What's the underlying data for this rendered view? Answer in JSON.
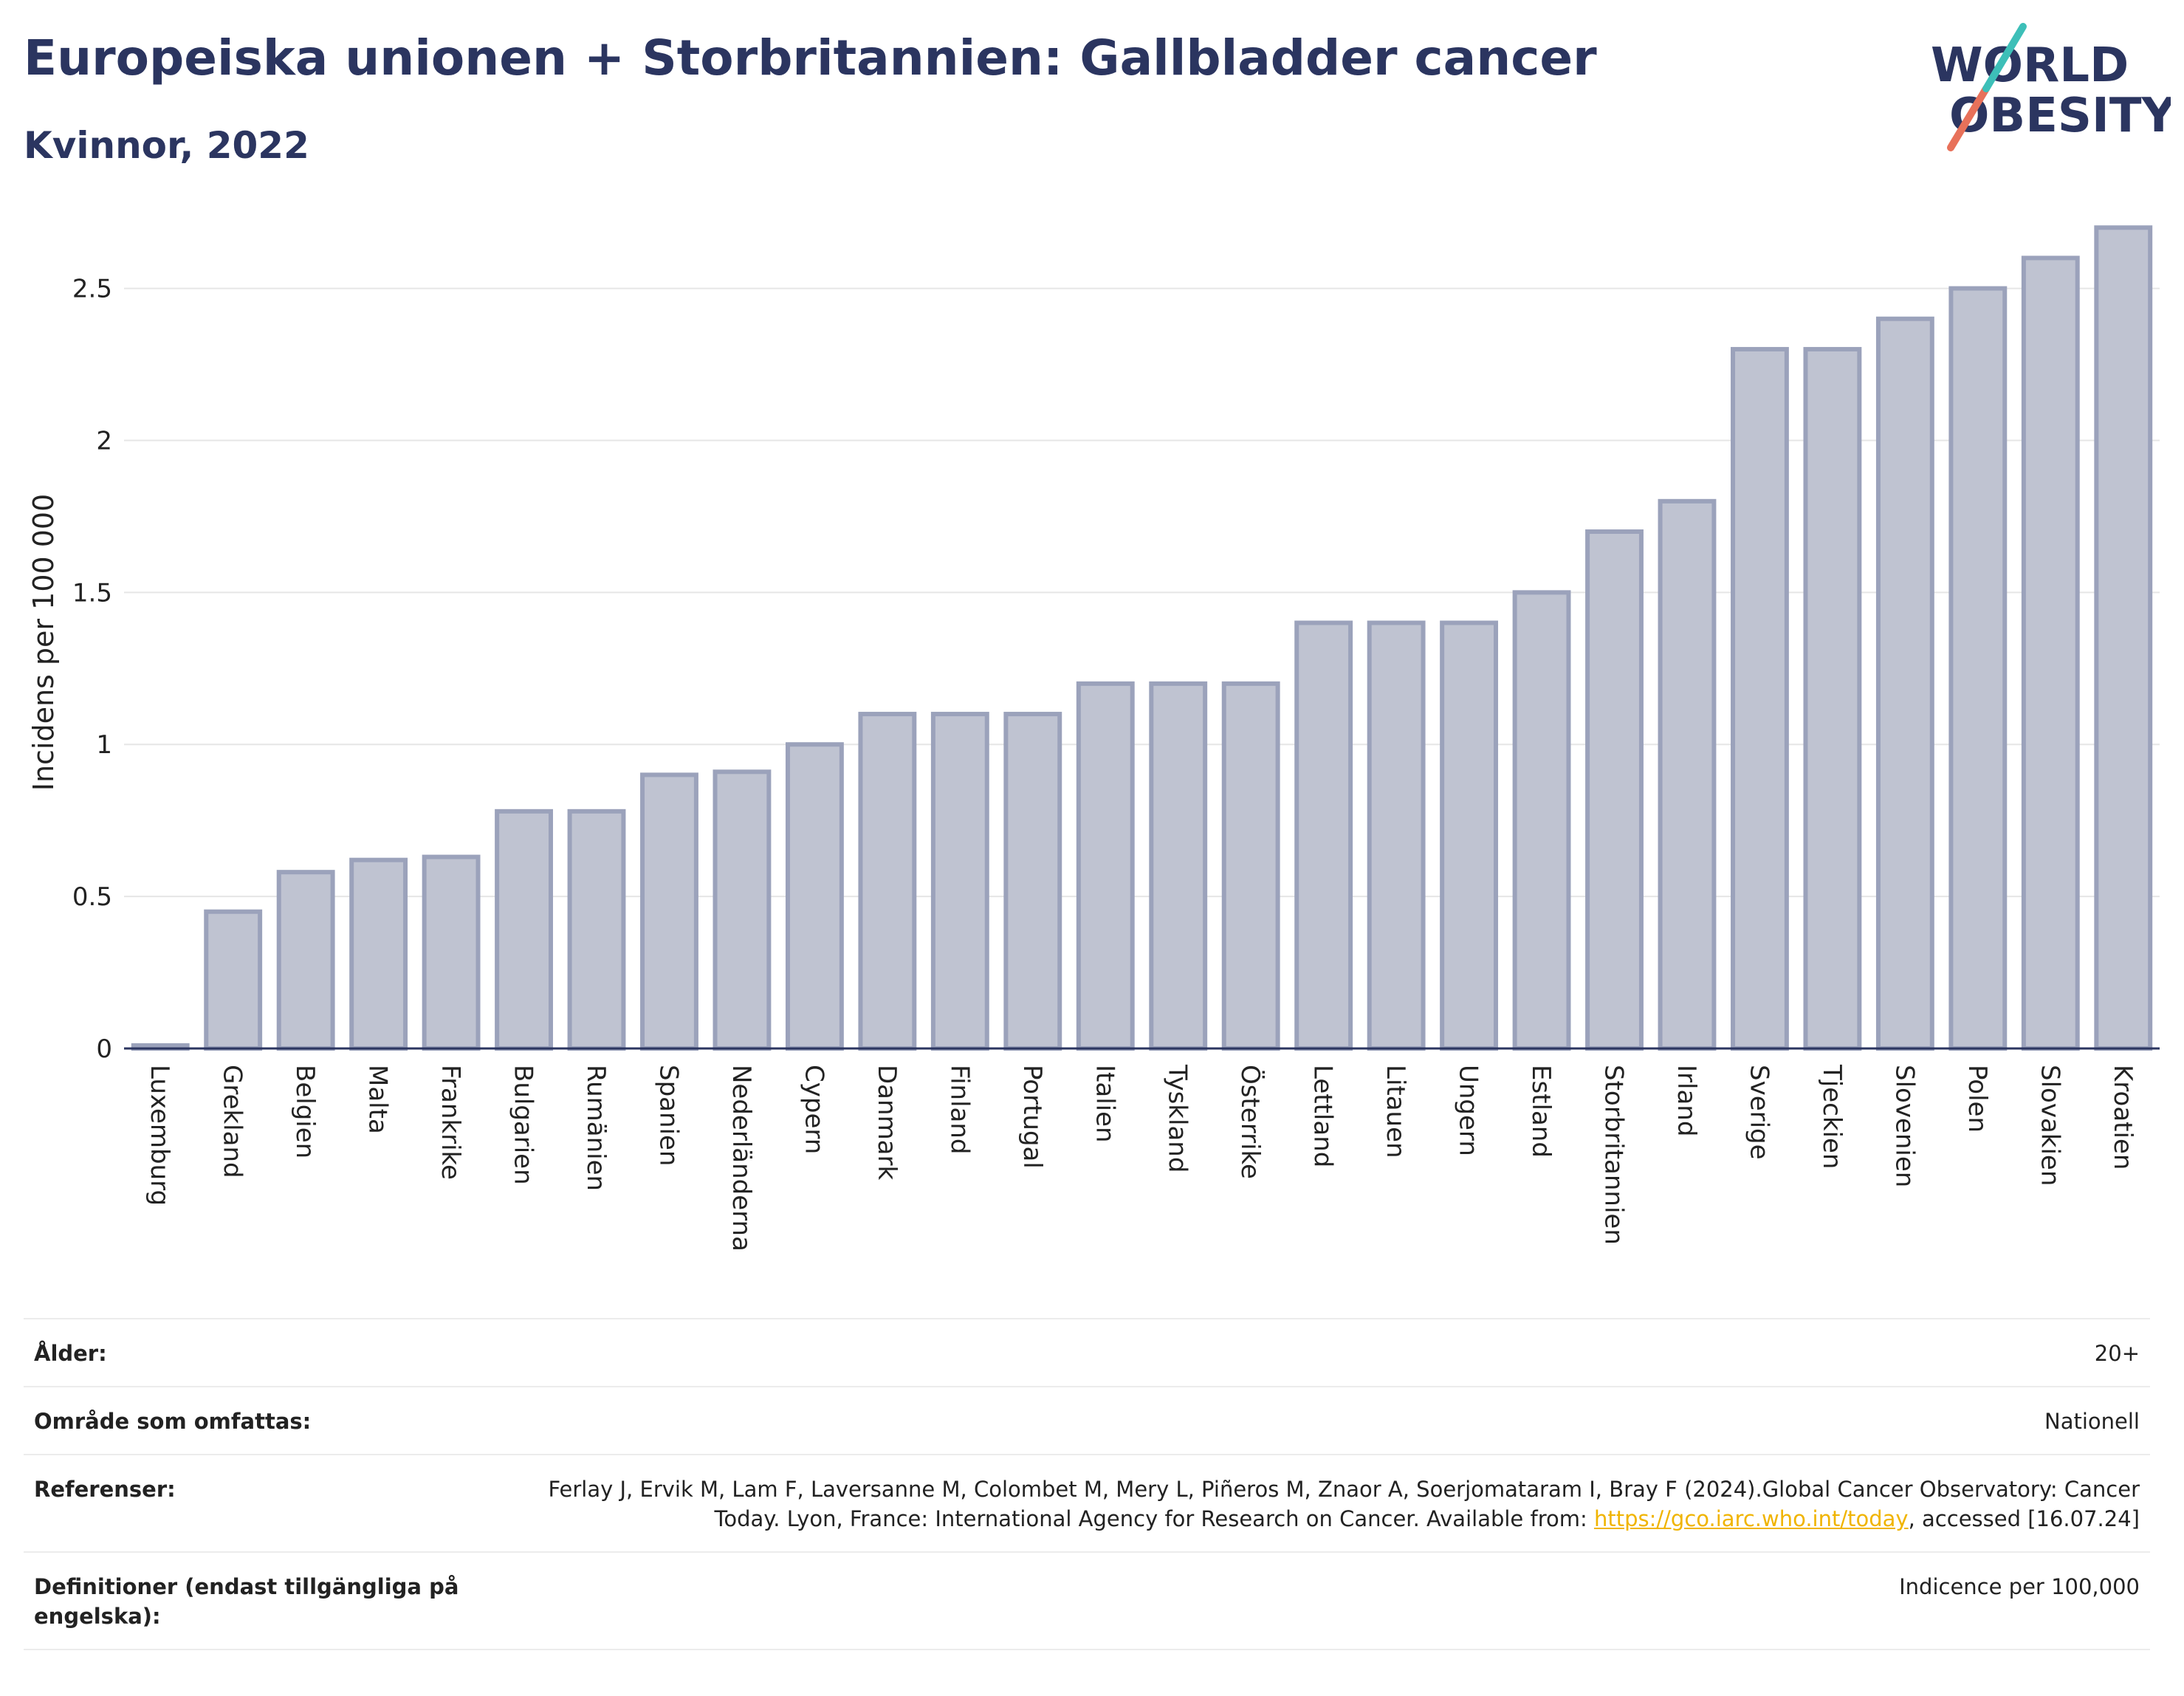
{
  "header": {
    "title": "Europeiska unionen + Storbritannien: Gallbladder cancer",
    "subtitle": "Kvinnor, 2022"
  },
  "logo": {
    "line1": "WORLD",
    "line2": "OBESITY"
  },
  "chart_data": {
    "type": "bar",
    "ylabel": "Incidens per 100 000",
    "xlabel": "",
    "ylim": [
      0,
      2.72
    ],
    "yticks": [
      0,
      0.5,
      1,
      1.5,
      2,
      2.5
    ],
    "ytick_labels": [
      "0",
      "0.5",
      "1",
      "1.5",
      "2",
      "2.5"
    ],
    "grid": true,
    "categories": [
      "Luxemburg",
      "Grekland",
      "Belgien",
      "Malta",
      "Frankrike",
      "Bulgarien",
      "Rumänien",
      "Spanien",
      "Nederländerna",
      "Cypern",
      "Danmark",
      "Finland",
      "Portugal",
      "Italien",
      "Tyskland",
      "Österrike",
      "Lettland",
      "Litauen",
      "Ungern",
      "Estland",
      "Storbritannien",
      "Irland",
      "Sverige",
      "Tjeckien",
      "Slovenien",
      "Polen",
      "Slovakien",
      "Kroatien"
    ],
    "values": [
      0.01,
      0.45,
      0.58,
      0.62,
      0.63,
      0.78,
      0.78,
      0.9,
      0.91,
      1.0,
      1.1,
      1.1,
      1.1,
      1.2,
      1.2,
      1.2,
      1.4,
      1.4,
      1.4,
      1.5,
      1.7,
      1.8,
      2.3,
      2.3,
      2.4,
      2.5,
      2.6,
      2.7
    ],
    "bar_color": "#bfc3d1",
    "bar_edge_color": "#9ba2bb"
  },
  "meta": {
    "rows": [
      {
        "key": "Ålder:",
        "value": "20+"
      },
      {
        "key": "Område som omfattas:",
        "value": "Nationell"
      },
      {
        "key": "Referenser:",
        "value_prefix": "Ferlay J, Ervik M, Lam F, Laversanne M, Colombet M, Mery L, Piñeros M, Znaor A, Soerjomataram I, Bray F (2024).Global Cancer Observatory: Cancer Today. Lyon, France: International Agency for Research on Cancer. Available from: ",
        "link": "https://gco.iarc.who.int/today",
        "value_suffix": ", accessed [16.07.24]"
      },
      {
        "key": "Definitioner (endast tillgängliga på\nengelska):",
        "value": "Indicence per 100,000"
      }
    ]
  }
}
